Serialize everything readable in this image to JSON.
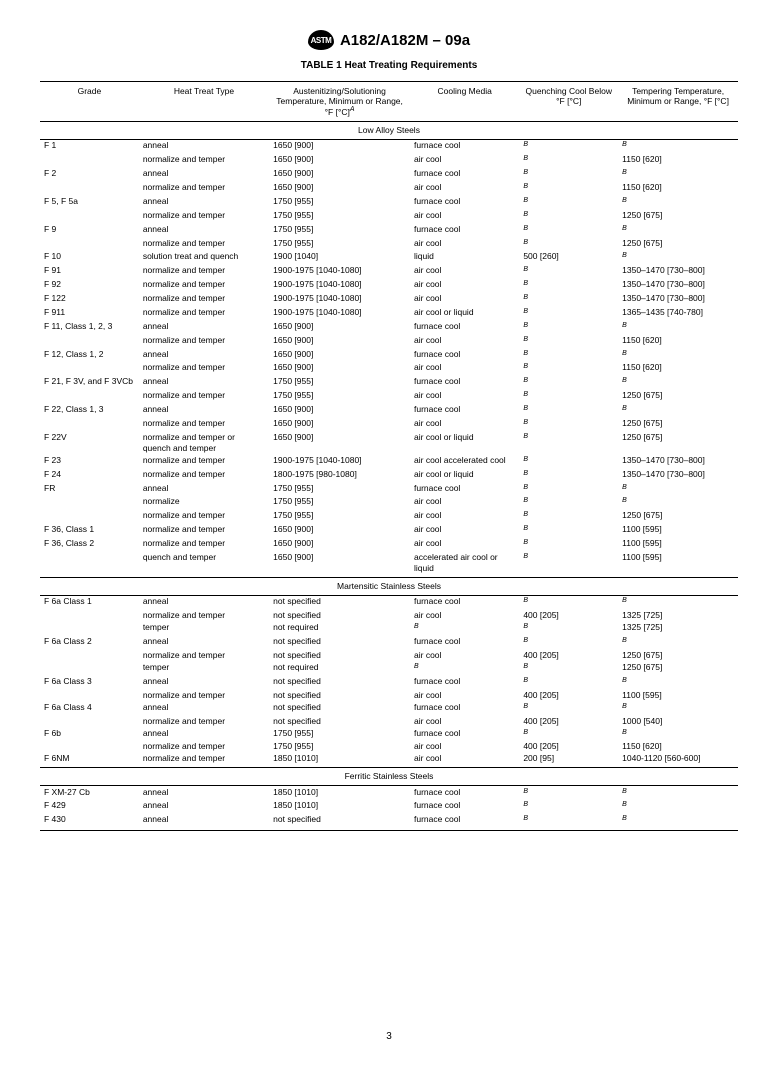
{
  "header": {
    "logo_text": "ASTM",
    "standard_id": "A182/A182M – 09a",
    "table_title": "TABLE 1  Heat Treating Requirements"
  },
  "columns": [
    "Grade",
    "Heat Treat Type",
    "Austenitizing/Solutioning Temperature, Minimum or Range, °F [°C]",
    "Cooling Media",
    "Quenching Cool Below °F [°C]",
    "Tempering Temperature, Minimum or Range, °F [°C]"
  ],
  "col_superscript": "A",
  "sections": [
    {
      "title": "Low Alloy Steels",
      "rows": [
        [
          "F 1",
          "anneal",
          "1650 [900]",
          "furnace cool",
          "B",
          "B"
        ],
        [
          "",
          "normalize and temper",
          "1650 [900]",
          "air cool",
          "B",
          "1150 [620]"
        ],
        [
          "F 2",
          "anneal",
          "1650 [900]",
          "furnace cool",
          "B",
          "B"
        ],
        [
          "",
          "normalize and temper",
          "1650 [900]",
          "air cool",
          "B",
          "1150 [620]"
        ],
        [
          "F 5, F 5a",
          "anneal",
          "1750 [955]",
          "furnace cool",
          "B",
          "B"
        ],
        [
          "",
          "normalize and temper",
          "1750 [955]",
          "air cool",
          "B",
          "1250 [675]"
        ],
        [
          "F 9",
          "anneal",
          "1750 [955]",
          "furnace cool",
          "B",
          "B"
        ],
        [
          "",
          "normalize and temper",
          "1750 [955]",
          "air cool",
          "B",
          "1250 [675]"
        ],
        [
          "F 10",
          "solution treat and quench",
          "1900 [1040]",
          "liquid",
          "500 [260]",
          "B"
        ],
        [
          "F 91",
          "normalize and temper",
          "1900-1975 [1040-1080]",
          "air cool",
          "B",
          "1350–1470 [730–800]"
        ],
        [
          "F 92",
          "normalize and temper",
          "1900-1975 [1040-1080]",
          "air cool",
          "B",
          "1350–1470 [730–800]"
        ],
        [
          "F 122",
          "normalize and temper",
          "1900-1975 [1040-1080]",
          "air cool",
          "B",
          "1350–1470 [730–800]"
        ],
        [
          "F 911",
          "normalize and temper",
          "1900-1975 [1040-1080]",
          "air cool or liquid",
          "B",
          "1365–1435 [740-780]"
        ],
        [
          "F 11, Class 1, 2, 3",
          "anneal",
          "1650 [900]",
          "furnace cool",
          "B",
          "B"
        ],
        [
          "",
          "normalize and temper",
          "1650 [900]",
          "air cool",
          "B",
          "1150 [620]"
        ],
        [
          "F 12, Class 1, 2",
          "anneal",
          "1650 [900]",
          "furnace cool",
          "B",
          "B"
        ],
        [
          "",
          "normalize and temper",
          "1650 [900]",
          "air cool",
          "B",
          "1150 [620]"
        ],
        [
          "F 21, F 3V, and F 3VCb",
          "anneal",
          "1750 [955]",
          "furnace cool",
          "B",
          "B"
        ],
        [
          "",
          "normalize and temper",
          "1750 [955]",
          "air cool",
          "B",
          "1250 [675]"
        ],
        [
          "F 22, Class 1, 3",
          "anneal",
          "1650 [900]",
          "furnace cool",
          "B",
          "B"
        ],
        [
          "",
          "normalize and temper",
          "1650 [900]",
          "air cool",
          "B",
          "1250 [675]"
        ],
        [
          "F 22V",
          "normalize and temper or quench and temper",
          "1650 [900]",
          "air cool or liquid",
          "B",
          "1250 [675]"
        ],
        [
          "F 23",
          "normalize and temper",
          "1900-1975 [1040-1080]",
          "air cool accelerated cool",
          "B",
          "1350–1470 [730–800]"
        ],
        [
          "F 24",
          "normalize and temper",
          "1800-1975 [980-1080]",
          "air cool or liquid",
          "B",
          "1350–1470 [730–800]"
        ],
        [
          "FR",
          "anneal",
          "1750 [955]",
          "furnace cool",
          "B",
          "B"
        ],
        [
          "",
          "normalize",
          "1750 [955]",
          "air cool",
          "B",
          "B"
        ],
        [
          "",
          "normalize and temper",
          "1750 [955]",
          "air cool",
          "B",
          "1250 [675]"
        ],
        [
          "F 36, Class 1",
          "normalize and temper",
          "1650 [900]",
          "air cool",
          "B",
          "1100 [595]"
        ],
        [
          "F 36, Class 2",
          "normalize and temper",
          "1650 [900]",
          "air cool",
          "B",
          "1100 [595]"
        ],
        [
          "",
          "quench and temper",
          "1650 [900]",
          "accelerated air cool or liquid",
          "B",
          "1100 [595]"
        ]
      ]
    },
    {
      "title": "Martensitic Stainless Steels",
      "rows": [
        [
          "F 6a Class 1",
          "anneal",
          "not specified",
          "furnace cool",
          "B",
          "B"
        ],
        [
          "",
          "normalize and temper",
          "not specified",
          "air cool",
          "400 [205]",
          "1325 [725]"
        ],
        [
          "",
          "temper",
          "not required",
          "B",
          "B",
          "1325 [725]"
        ],
        [
          "F 6a Class 2",
          "anneal",
          "not specified",
          "furnace cool",
          "B",
          "B"
        ],
        [
          "",
          "normalize and temper",
          "not specified",
          "air cool",
          "400 [205]",
          "1250 [675]"
        ],
        [
          "",
          "temper",
          "not required",
          "B",
          "B",
          "1250 [675]"
        ],
        [
          "F 6a Class 3",
          "anneal",
          "not specified",
          "furnace cool",
          "B",
          "B"
        ],
        [
          "",
          "normalize and temper",
          "not specified",
          "air cool",
          "400 [205]",
          "1100 [595]"
        ],
        [
          "F 6a Class 4",
          "anneal",
          "not specified",
          "furnace cool",
          "B",
          "B"
        ],
        [
          "",
          "normalize and temper",
          "not specified",
          "air cool",
          "400 [205]",
          "1000 [540]"
        ],
        [
          "F 6b",
          "anneal",
          "1750 [955]",
          "furnace cool",
          "B",
          "B"
        ],
        [
          "",
          "normalize and temper",
          "1750 [955]",
          "air cool",
          "400 [205]",
          "1150 [620]"
        ],
        [
          "F 6NM",
          "normalize and temper",
          "1850 [1010]",
          "air cool",
          "200 [95]",
          "1040-1120 [560-600]"
        ]
      ]
    },
    {
      "title": "Ferritic Stainless Steels",
      "rows": [
        [
          "F XM-27 Cb",
          "anneal",
          "1850 [1010]",
          "furnace cool",
          "B",
          "B"
        ],
        [
          "F 429",
          "anneal",
          "1850 [1010]",
          "furnace cool",
          "B",
          "B"
        ],
        [
          "F 430",
          "anneal",
          "not specified",
          "furnace cool",
          "B",
          "B"
        ]
      ]
    }
  ],
  "page_number": "3"
}
